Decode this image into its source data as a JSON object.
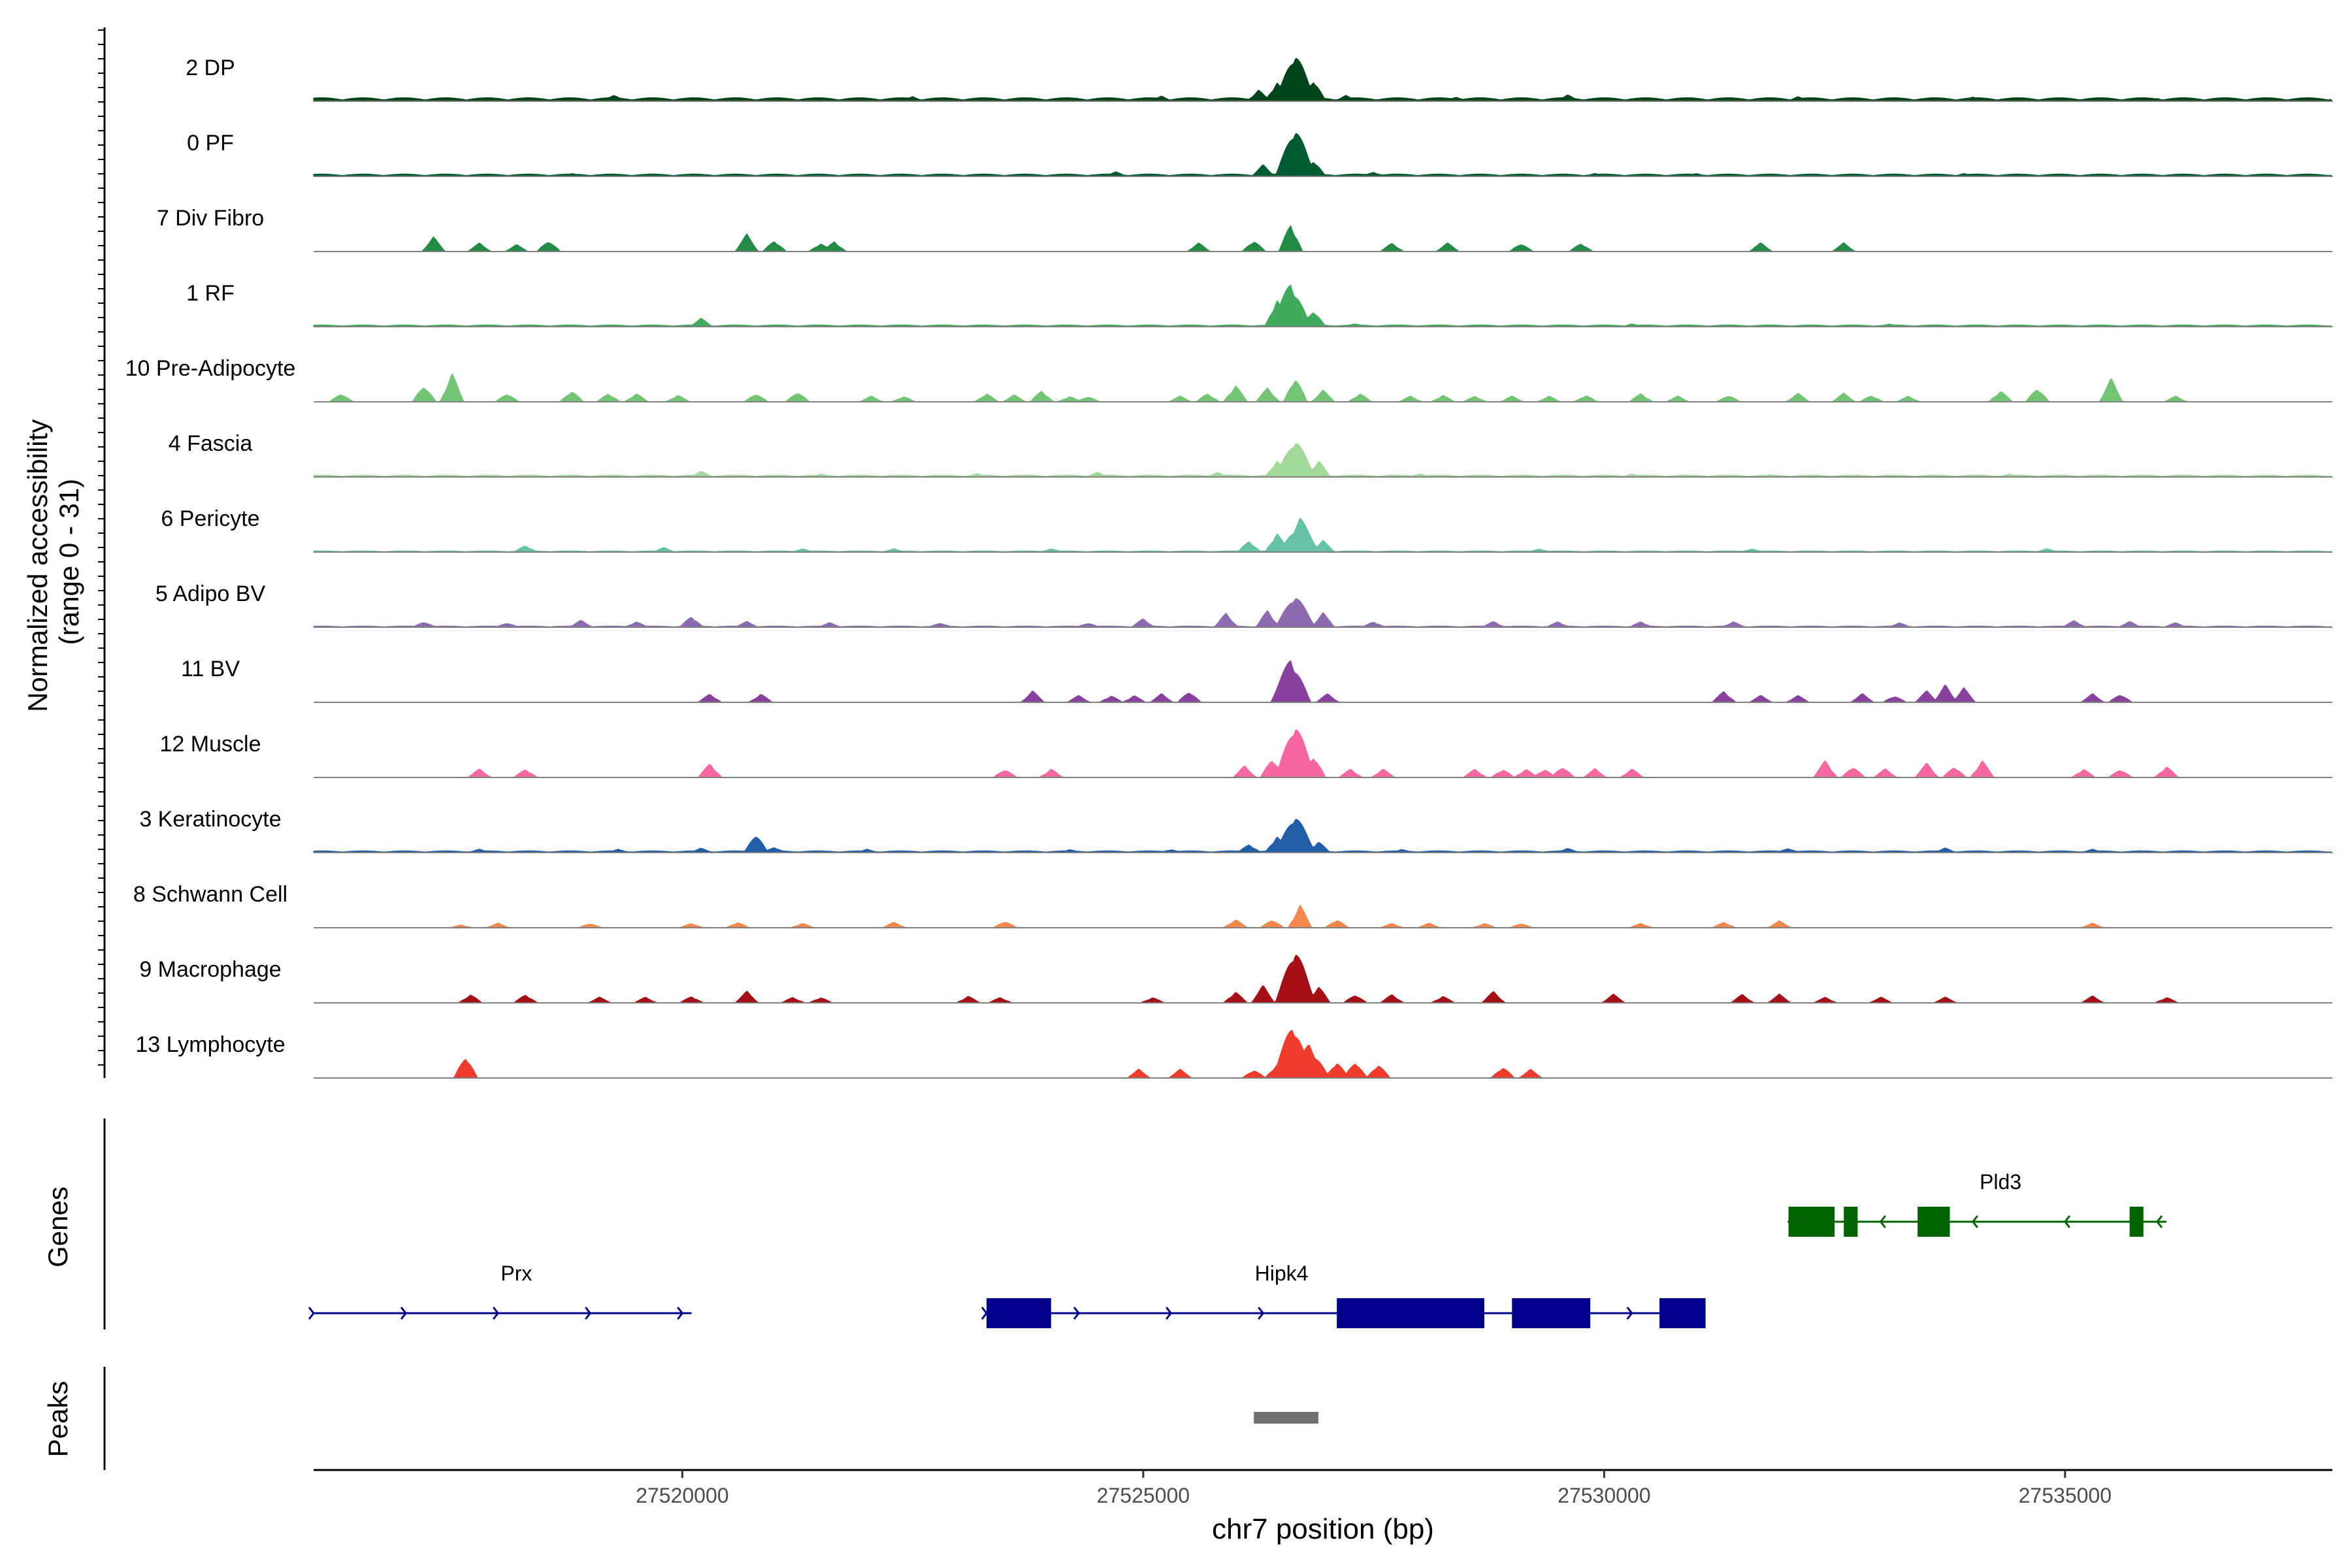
{
  "chart_data": {
    "type": "area",
    "title": "",
    "xlabel": "chr7 position (bp)",
    "ylabel": "Normalized accessibility\n(range 0 - 31)",
    "ylim": [
      0,
      31
    ],
    "x_range": [
      27516000,
      27537900
    ],
    "x_ticks": [
      27520000,
      27525000,
      27530000,
      27535000
    ],
    "x_tick_labels": [
      "27520000",
      "27525000",
      "27530000",
      "27535000"
    ],
    "tracks": [
      {
        "name": "2 DP",
        "color": "#00441b",
        "baseline": 0.6,
        "profile": [
          [
            27526650,
            9
          ]
        ],
        "peaks": [
          [
            27516900,
            0.6
          ],
          [
            27519250,
            1.2
          ],
          [
            27522500,
            0.8
          ],
          [
            27525200,
            0.9
          ],
          [
            27526250,
            2
          ],
          [
            27526450,
            3.5
          ],
          [
            27526650,
            9
          ],
          [
            27526850,
            4
          ],
          [
            27527200,
            1
          ],
          [
            27528400,
            0.8
          ],
          [
            27529600,
            1.2
          ],
          [
            27532100,
            0.8
          ],
          [
            27534000,
            0.8
          ],
          [
            27536000,
            0.5
          ]
        ]
      },
      {
        "name": "0 PF",
        "color": "#005a32",
        "baseline": 0.4,
        "profile": [],
        "peaks": [
          [
            27518800,
            0.6
          ],
          [
            27521500,
            0.5
          ],
          [
            27524700,
            0.8
          ],
          [
            27526300,
            2
          ],
          [
            27526650,
            9
          ],
          [
            27526850,
            3
          ],
          [
            27527500,
            0.8
          ],
          [
            27529900,
            0.5
          ],
          [
            27531000,
            0.5
          ],
          [
            27533900,
            0.5
          ]
        ]
      },
      {
        "name": "7 Div Fibro",
        "color": "#238b45",
        "baseline": 0,
        "profile": [],
        "peaks": [
          [
            27517300,
            2.5
          ],
          [
            27517800,
            1.5
          ],
          [
            27518200,
            1.2
          ],
          [
            27518550,
            2
          ],
          [
            27520700,
            3
          ],
          [
            27521000,
            2
          ],
          [
            27521500,
            1.5
          ],
          [
            27521650,
            1.8
          ],
          [
            27525600,
            1.5
          ],
          [
            27526600,
            5
          ],
          [
            27526200,
            2
          ],
          [
            27527700,
            1.5
          ],
          [
            27528300,
            1.5
          ],
          [
            27529100,
            1.5
          ],
          [
            27529750,
            1.5
          ],
          [
            27531700,
            1.5
          ],
          [
            27532600,
            1.5
          ]
        ]
      },
      {
        "name": "1 RF",
        "color": "#41ab5d",
        "baseline": 0.3,
        "profile": [],
        "peaks": [
          [
            27520200,
            1.5
          ],
          [
            27526600,
            8
          ],
          [
            27526450,
            5
          ],
          [
            27526850,
            3
          ],
          [
            27527300,
            0.6
          ],
          [
            27530300,
            0.5
          ],
          [
            27533100,
            0.5
          ]
        ]
      },
      {
        "name": "10 Pre-Adipocyte",
        "color": "#74c476",
        "baseline": 0,
        "profile": [],
        "peaks": [
          [
            27516300,
            1.5
          ],
          [
            27517200,
            3
          ],
          [
            27517500,
            5
          ],
          [
            27518100,
            1.5
          ],
          [
            27518800,
            2
          ],
          [
            27519200,
            1.5
          ],
          [
            27519500,
            1.5
          ],
          [
            27519950,
            1.2
          ],
          [
            27520800,
            1.5
          ],
          [
            27521250,
            1.8
          ],
          [
            27522050,
            1
          ],
          [
            27522400,
            1
          ],
          [
            27523300,
            1.5
          ],
          [
            27523600,
            1.2
          ],
          [
            27523900,
            2
          ],
          [
            27524200,
            1
          ],
          [
            27524400,
            1
          ],
          [
            27525400,
            1
          ],
          [
            27525700,
            1.5
          ],
          [
            27526000,
            3
          ],
          [
            27526350,
            2.5
          ],
          [
            27526650,
            4.5
          ],
          [
            27526950,
            2
          ],
          [
            27527350,
            1.5
          ],
          [
            27527900,
            1
          ],
          [
            27528250,
            1.2
          ],
          [
            27528600,
            1
          ],
          [
            27529000,
            1
          ],
          [
            27529400,
            1
          ],
          [
            27529800,
            1.2
          ],
          [
            27530400,
            1.5
          ],
          [
            27530800,
            1
          ],
          [
            27531350,
            1.2
          ],
          [
            27532100,
            1.5
          ],
          [
            27532600,
            1.5
          ],
          [
            27532900,
            1.2
          ],
          [
            27533300,
            1
          ],
          [
            27534300,
            2
          ],
          [
            27534700,
            2.5
          ],
          [
            27535500,
            4
          ],
          [
            27536200,
            1
          ]
        ]
      },
      {
        "name": "4 Fascia",
        "color": "#a1d99b",
        "baseline": 0.3,
        "profile": [],
        "peaks": [
          [
            27520200,
            1
          ],
          [
            27521500,
            0.6
          ],
          [
            27523200,
            0.6
          ],
          [
            27524500,
            0.8
          ],
          [
            27525800,
            0.8
          ],
          [
            27526450,
            3
          ],
          [
            27526650,
            7
          ],
          [
            27526900,
            3
          ],
          [
            27528000,
            0.6
          ],
          [
            27530300,
            0.5
          ],
          [
            27531800,
            0.5
          ],
          [
            27534400,
            0.5
          ]
        ]
      },
      {
        "name": "6 Pericyte",
        "color": "#66c2a4",
        "baseline": 0.2,
        "profile": [],
        "peaks": [
          [
            27518300,
            1.2
          ],
          [
            27519800,
            0.8
          ],
          [
            27521300,
            0.6
          ],
          [
            27522300,
            0.6
          ],
          [
            27524000,
            0.6
          ],
          [
            27526150,
            2
          ],
          [
            27526450,
            3.5
          ],
          [
            27526700,
            6
          ],
          [
            27526950,
            2
          ],
          [
            27529300,
            0.6
          ],
          [
            27531600,
            0.6
          ],
          [
            27534800,
            0.6
          ]
        ]
      },
      {
        "name": "5 Adipo BV",
        "color": "#8c6bb1",
        "baseline": 0.2,
        "profile": [],
        "peaks": [
          [
            27517200,
            1
          ],
          [
            27518100,
            0.8
          ],
          [
            27518900,
            1.2
          ],
          [
            27519500,
            1
          ],
          [
            27520100,
            2
          ],
          [
            27520700,
            1
          ],
          [
            27521600,
            0.8
          ],
          [
            27522800,
            0.8
          ],
          [
            27524400,
            0.8
          ],
          [
            27525000,
            1.5
          ],
          [
            27525900,
            2.5
          ],
          [
            27526350,
            3
          ],
          [
            27526650,
            6
          ],
          [
            27526950,
            2.5
          ],
          [
            27527500,
            1
          ],
          [
            27528800,
            1
          ],
          [
            27529500,
            1
          ],
          [
            27530400,
            1
          ],
          [
            27531400,
            1
          ],
          [
            27533200,
            0.8
          ],
          [
            27535100,
            1.2
          ],
          [
            27535700,
            1
          ],
          [
            27536200,
            0.8
          ]
        ]
      },
      {
        "name": "11 BV",
        "color": "#88419d",
        "baseline": 0,
        "profile": [],
        "peaks": [
          [
            27520300,
            1.5
          ],
          [
            27520850,
            1.5
          ],
          [
            27523800,
            2
          ],
          [
            27524300,
            1.2
          ],
          [
            27524650,
            1.2
          ],
          [
            27524900,
            1.2
          ],
          [
            27525200,
            1.5
          ],
          [
            27525500,
            2
          ],
          [
            27526600,
            8
          ],
          [
            27527000,
            1.5
          ],
          [
            27531300,
            2
          ],
          [
            27531700,
            1.2
          ],
          [
            27532100,
            1.2
          ],
          [
            27532800,
            1.5
          ],
          [
            27533150,
            1.2
          ],
          [
            27533500,
            2
          ],
          [
            27533700,
            3
          ],
          [
            27533900,
            2.5
          ],
          [
            27535300,
            1.5
          ],
          [
            27535600,
            1.5
          ]
        ]
      },
      {
        "name": "12 Muscle",
        "color": "#f768a1",
        "baseline": 0,
        "profile": [],
        "peaks": [
          [
            27517800,
            1.5
          ],
          [
            27518300,
            1.5
          ],
          [
            27520300,
            2.5
          ],
          [
            27523500,
            1.5
          ],
          [
            27524000,
            1.5
          ],
          [
            27526100,
            2
          ],
          [
            27526400,
            3.5
          ],
          [
            27526650,
            10
          ],
          [
            27526850,
            4
          ],
          [
            27527250,
            1.5
          ],
          [
            27527600,
            1.5
          ],
          [
            27528600,
            1.5
          ],
          [
            27528900,
            1.5
          ],
          [
            27529150,
            1.5
          ],
          [
            27529350,
            1.5
          ],
          [
            27529550,
            2
          ],
          [
            27529900,
            1.5
          ],
          [
            27530300,
            1.5
          ],
          [
            27532400,
            3
          ],
          [
            27532700,
            2
          ],
          [
            27533050,
            1.5
          ],
          [
            27533500,
            2.5
          ],
          [
            27533800,
            2
          ],
          [
            27534100,
            3
          ],
          [
            27535200,
            1.5
          ],
          [
            27535600,
            1.5
          ],
          [
            27536100,
            2
          ]
        ]
      },
      {
        "name": "3 Keratinocyte",
        "color": "#225ea8",
        "baseline": 0.3,
        "profile": [],
        "peaks": [
          [
            27517800,
            0.6
          ],
          [
            27519300,
            0.6
          ],
          [
            27520200,
            0.8
          ],
          [
            27520800,
            3.5
          ],
          [
            27521000,
            1
          ],
          [
            27522000,
            0.6
          ],
          [
            27524200,
            0.6
          ],
          [
            27525300,
            0.6
          ],
          [
            27526150,
            1.5
          ],
          [
            27526450,
            3
          ],
          [
            27526650,
            7
          ],
          [
            27526900,
            2
          ],
          [
            27527800,
            0.6
          ],
          [
            27529600,
            0.8
          ],
          [
            27532000,
            0.8
          ],
          [
            27533700,
            0.8
          ],
          [
            27535300,
            0.6
          ]
        ]
      },
      {
        "name": "8 Schwann Cell",
        "color": "#f4874b",
        "baseline": 0,
        "profile": [],
        "peaks": [
          [
            27517600,
            0.5
          ],
          [
            27518000,
            0.8
          ],
          [
            27519000,
            0.8
          ],
          [
            27520100,
            0.8
          ],
          [
            27520600,
            1
          ],
          [
            27521300,
            0.8
          ],
          [
            27522300,
            1
          ],
          [
            27523500,
            1.2
          ],
          [
            27526000,
            1.5
          ],
          [
            27526400,
            1.5
          ],
          [
            27526700,
            4
          ],
          [
            27527100,
            1.5
          ],
          [
            27527700,
            0.8
          ],
          [
            27528100,
            0.8
          ],
          [
            27528700,
            0.8
          ],
          [
            27529100,
            0.8
          ],
          [
            27530400,
            0.8
          ],
          [
            27531300,
            1
          ],
          [
            27531900,
            1.2
          ],
          [
            27535300,
            0.8
          ]
        ]
      },
      {
        "name": "9 Macrophage",
        "color": "#a50f15",
        "baseline": 0,
        "profile": [],
        "peaks": [
          [
            27517700,
            1.5
          ],
          [
            27518300,
            1.5
          ],
          [
            27519100,
            1
          ],
          [
            27519600,
            1
          ],
          [
            27520100,
            1.2
          ],
          [
            27520700,
            2
          ],
          [
            27521200,
            1
          ],
          [
            27521500,
            1
          ],
          [
            27523100,
            1.2
          ],
          [
            27523450,
            1
          ],
          [
            27525100,
            1
          ],
          [
            27526000,
            2
          ],
          [
            27526300,
            3
          ],
          [
            27526650,
            10
          ],
          [
            27526900,
            3
          ],
          [
            27527300,
            1.5
          ],
          [
            27527700,
            1.5
          ],
          [
            27528250,
            1.2
          ],
          [
            27528800,
            2
          ],
          [
            27530100,
            1.5
          ],
          [
            27531500,
            1.5
          ],
          [
            27531900,
            1.5
          ],
          [
            27532400,
            1
          ],
          [
            27533000,
            1
          ],
          [
            27533700,
            1
          ],
          [
            27535300,
            1.2
          ],
          [
            27536100,
            1
          ]
        ]
      },
      {
        "name": "13 Lymphocyte",
        "color": "#ef3b2c",
        "baseline": 0,
        "profile": [],
        "peaks": [
          [
            27517650,
            4
          ],
          [
            27524950,
            1.5
          ],
          [
            27525400,
            1.5
          ],
          [
            27526200,
            1.5
          ],
          [
            27526450,
            2.5
          ],
          [
            27526620,
            10
          ],
          [
            27526800,
            6
          ],
          [
            27527100,
            3
          ],
          [
            27527300,
            3
          ],
          [
            27527550,
            2.5
          ],
          [
            27528900,
            2
          ],
          [
            27529200,
            1.5
          ]
        ]
      }
    ],
    "genes": [
      {
        "name": "Hipk4",
        "color": "#00008b",
        "strand": "+",
        "start": 27523300,
        "end": 27531100,
        "exons": [
          [
            27523300,
            27524000
          ],
          [
            27527100,
            27528700
          ],
          [
            27529000,
            27529850
          ],
          [
            27530600,
            27531100
          ]
        ]
      },
      {
        "name": "Prx",
        "color": "#00008b",
        "strand": "+",
        "start": 27516000,
        "end": 27520100,
        "exons": []
      },
      {
        "name": "Pld3",
        "color": "#006400",
        "strand": "-",
        "start": 27532000,
        "end": 27536100,
        "exons": [
          [
            27532000,
            27532500
          ],
          [
            27532600,
            27532750
          ],
          [
            27533400,
            27533750
          ],
          [
            27535700,
            27535850
          ]
        ]
      }
    ],
    "gene_track_label": "Genes",
    "peaks_track_label": "Peaks",
    "peak_regions": [
      [
        27526200,
        27526900
      ]
    ],
    "peak_color": "#707070"
  }
}
